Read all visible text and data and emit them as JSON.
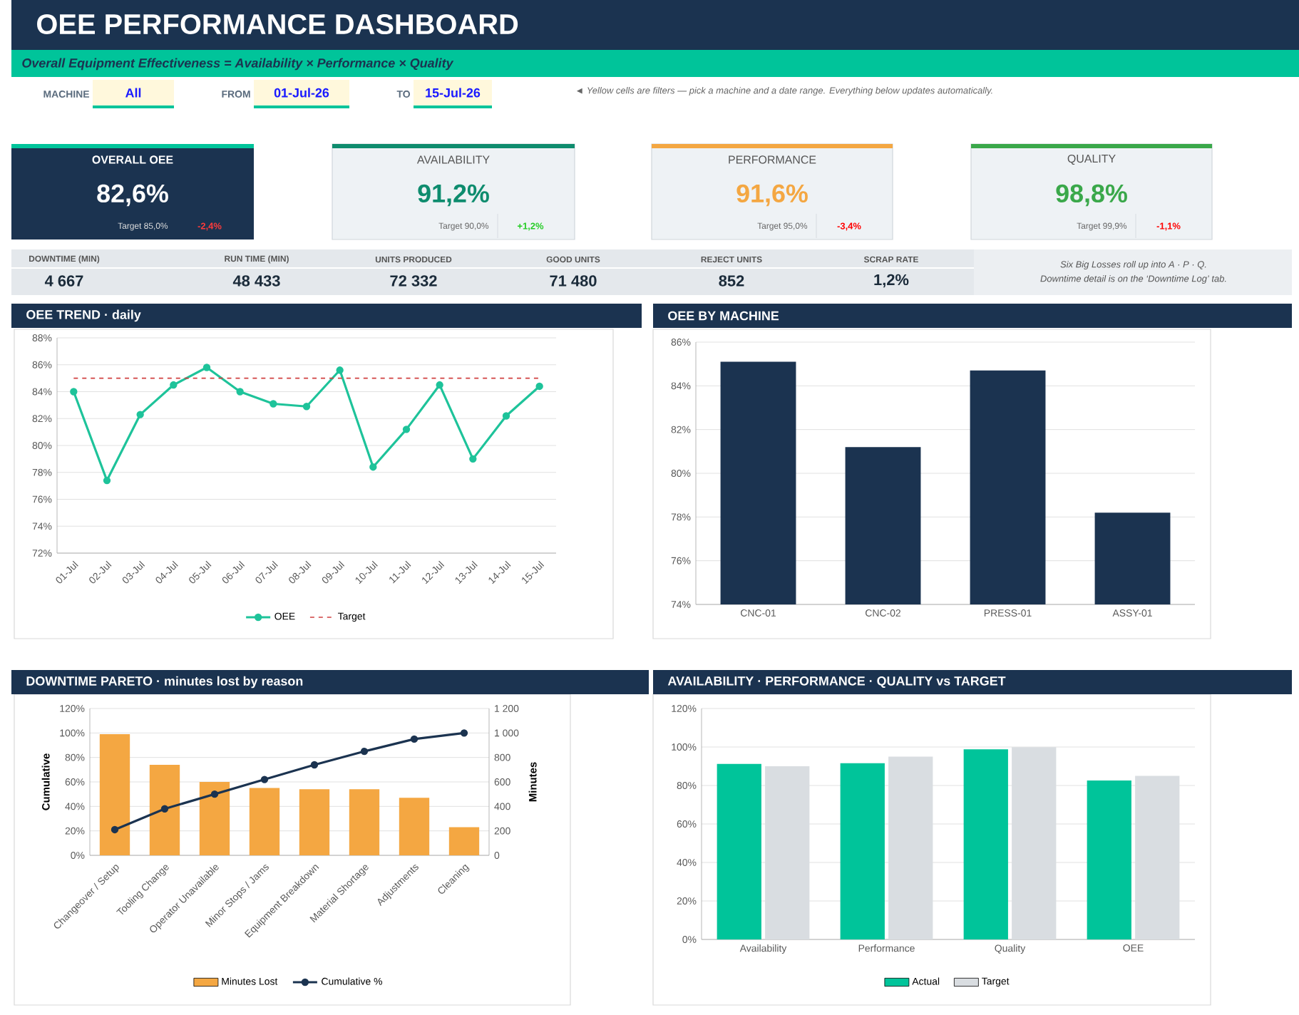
{
  "chart_data": [
    {
      "type": "other",
      "title": "OEE PERFORMANCE DASHBOARD",
      "subtitle": "Overall Equipment Effectiveness = Availability × Performance × Quality",
      "annotations": [
        "MACHINE",
        "All",
        "FROM",
        "01-Jul-26",
        "TO",
        "15-Jul-26",
        "◄ Yellow cells are filters — pick a machine and a date range. Everything below updates automatically."
      ]
    },
    {
      "type": "other",
      "title": "OVERALL OEE",
      "annotations": [
        "82,6%",
        "Target 85,0%",
        "-2,4%"
      ]
    },
    {
      "type": "other",
      "title": "AVAILABILITY",
      "annotations": [
        "91,2%",
        "Target 90,0%",
        "+1,2%"
      ]
    },
    {
      "type": "other",
      "title": "PERFORMANCE",
      "annotations": [
        "91,6%",
        "Target 95,0%",
        "-3,4%"
      ]
    },
    {
      "type": "other",
      "title": "QUALITY",
      "annotations": [
        "98,8%",
        "Target 99,9%",
        "-1,1%"
      ]
    },
    {
      "type": "other",
      "categories": [
        "DOWNTIME (MIN)",
        "RUN TIME (MIN)",
        "UNITS PRODUCED",
        "GOOD UNITS",
        "REJECT UNITS",
        "SCRAP RATE"
      ],
      "annotations": [
        "4 667",
        "48 433",
        "72 332",
        "71 480",
        "852",
        "1,2%",
        "Six Big Losses roll up into A · P · Q.",
        "Downtime detail is on the ‘Downtime Log’ tab."
      ]
    },
    {
      "type": "line",
      "title": "OEE TREND · daily",
      "categories": [
        "01-Jul",
        "02-Jul",
        "03-Jul",
        "04-Jul",
        "05-Jul",
        "06-Jul",
        "07-Jul",
        "08-Jul",
        "09-Jul",
        "10-Jul",
        "11-Jul",
        "12-Jul",
        "13-Jul",
        "14-Jul",
        "15-Jul"
      ],
      "series": [
        {
          "name": "OEE",
          "color": "#1ec39a",
          "values": [
            84.0,
            77.4,
            82.3,
            84.5,
            85.8,
            84.0,
            83.1,
            82.9,
            85.6,
            78.4,
            81.2,
            84.5,
            79.0,
            82.2,
            84.4
          ]
        }
      ],
      "ref_lines": [
        {
          "axis": "y",
          "value": 85,
          "label": "Target",
          "color": "#d04040",
          "line_style": "dashed"
        }
      ],
      "ylim": [
        72,
        88
      ],
      "yticks": [
        {
          "value": 72,
          "label": "72%"
        },
        {
          "value": 74,
          "label": "74%"
        },
        {
          "value": 76,
          "label": "76%"
        },
        {
          "value": 78,
          "label": "78%"
        },
        {
          "value": 80,
          "label": "80%"
        },
        {
          "value": 82,
          "label": "82%"
        },
        {
          "value": 84,
          "label": "84%"
        },
        {
          "value": 86,
          "label": "86%"
        },
        {
          "value": 88,
          "label": "88%"
        }
      ],
      "grid": "y",
      "legend": "bottom",
      "marker": "circle"
    },
    {
      "type": "bar",
      "title": "OEE BY MACHINE",
      "categories": [
        "CNC-01",
        "CNC-02",
        "PRESS-01",
        "ASSY-01"
      ],
      "values": [
        85.1,
        81.2,
        84.7,
        78.2
      ],
      "color": "#1b3350",
      "ylim": [
        74,
        86
      ],
      "yticks": [
        {
          "value": 74,
          "label": "74%"
        },
        {
          "value": 76,
          "label": "76%"
        },
        {
          "value": 78,
          "label": "78%"
        },
        {
          "value": 80,
          "label": "80%"
        },
        {
          "value": 82,
          "label": "82%"
        },
        {
          "value": 84,
          "label": "84%"
        },
        {
          "value": 86,
          "label": "86%"
        }
      ],
      "grid": "y"
    },
    {
      "type": "bar",
      "title": "DOWNTIME PARETO · minutes lost by reason",
      "categories": [
        "Changeover / Setup",
        "Tooling Change",
        "Operator Unavailable",
        "Minor Stops / Jams",
        "Equipment Breakdown",
        "Material Shortage",
        "Adjustments",
        "Cleaning"
      ],
      "series": [
        {
          "name": "Minutes Lost",
          "axis": "y2",
          "color": "#f4a742",
          "values": [
            990,
            740,
            600,
            550,
            540,
            540,
            470,
            230
          ]
        },
        {
          "name": "Cumulative %",
          "type": "line",
          "color": "#1b3350",
          "values": [
            21,
            38,
            50,
            62,
            74,
            85,
            95,
            100
          ]
        }
      ],
      "ylabel": "Cumulative",
      "y2label": "Minutes",
      "ylim": [
        0,
        120
      ],
      "yticks": [
        {
          "value": 0,
          "label": "0%"
        },
        {
          "value": 20,
          "label": "20%"
        },
        {
          "value": 40,
          "label": "40%"
        },
        {
          "value": 60,
          "label": "60%"
        },
        {
          "value": 80,
          "label": "80%"
        },
        {
          "value": 100,
          "label": "100%"
        },
        {
          "value": 120,
          "label": "120%"
        }
      ],
      "y2lim": [
        0,
        1200
      ],
      "y2ticks": [
        0,
        200,
        400,
        600,
        800,
        {
          "value": 1000,
          "label": "1 000"
        },
        {
          "value": 1200,
          "label": "1 200"
        }
      ],
      "grid": "y",
      "legend": "bottom",
      "marker": "circle"
    },
    {
      "type": "bar",
      "title": "AVAILABILITY · PERFORMANCE · QUALITY vs TARGET",
      "categories": [
        "Availability",
        "Performance",
        "Quality",
        "OEE"
      ],
      "series": [
        {
          "name": "Actual",
          "color": "#00c49a",
          "values": [
            91.2,
            91.6,
            98.8,
            82.6
          ]
        },
        {
          "name": "Target",
          "color": "#d9dde1",
          "values": [
            90.0,
            95.0,
            99.9,
            85.0
          ]
        }
      ],
      "ylim": [
        0,
        120
      ],
      "yticks": [
        {
          "value": 0,
          "label": "0%"
        },
        {
          "value": 20,
          "label": "20%"
        },
        {
          "value": 40,
          "label": "40%"
        },
        {
          "value": 60,
          "label": "60%"
        },
        {
          "value": 80,
          "label": "80%"
        },
        {
          "value": 100,
          "label": "100%"
        },
        {
          "value": 120,
          "label": "120%"
        }
      ],
      "grid": "y",
      "legend": "bottom"
    }
  ]
}
